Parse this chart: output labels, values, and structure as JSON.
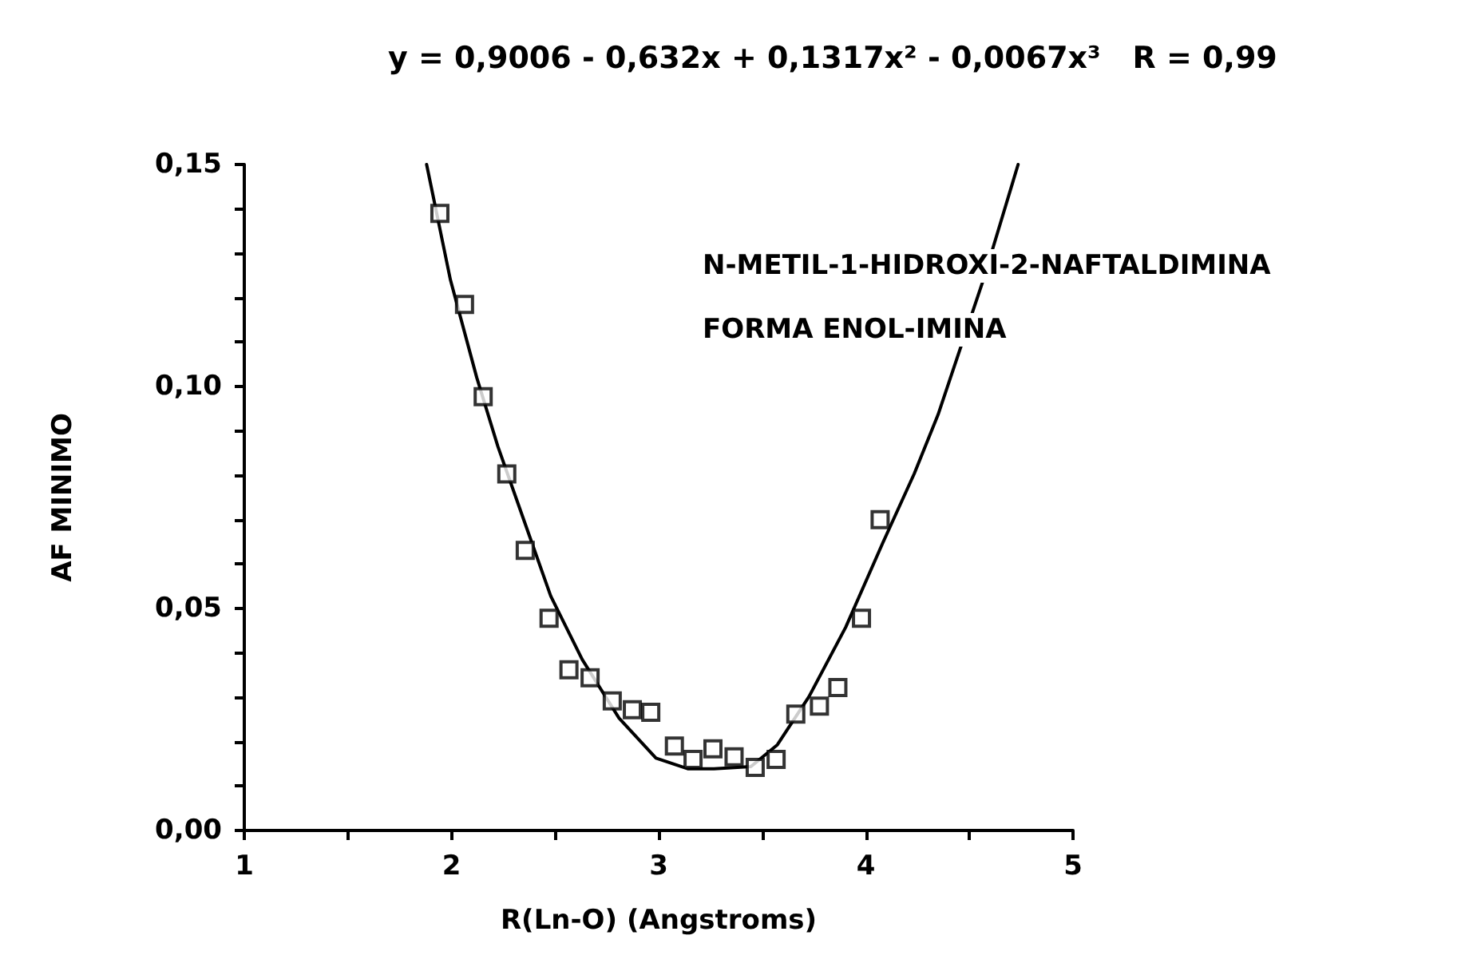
{
  "chart_data": {
    "type": "scatter",
    "title": "y = 0,9006 - 0,632x + 0,1317x² - 0,0067x³   R = 0,99",
    "xlabel": "R(Ln-O) (Angstroms)",
    "ylabel": "AF MINIMO",
    "annotations": [
      "N-METIL-1-HIDROXI-2-NAFTALDIMINA",
      "FORMA ENOL-IMINA"
    ],
    "xlim": [
      1,
      5
    ],
    "xticks": [
      1,
      {
        "value": 1.5,
        "label": null
      },
      2,
      {
        "value": 2.5,
        "label": null
      },
      3,
      {
        "value": 3.5,
        "label": null
      },
      4,
      {
        "value": 4.5,
        "label": null
      },
      5
    ],
    "ylim": [
      0,
      0.15
    ],
    "yticks": [
      {
        "value": 0,
        "label": "0,00"
      },
      {
        "value": 0.01,
        "label": null
      },
      {
        "value": 0.02,
        "label": null
      },
      {
        "value": 0.03,
        "label": null
      },
      {
        "value": 0.04,
        "label": null
      },
      {
        "value": 0.05,
        "label": "0,05"
      },
      {
        "value": 0.06,
        "label": null
      },
      {
        "value": 0.07,
        "label": null
      },
      {
        "value": 0.08,
        "label": null
      },
      {
        "value": 0.09,
        "label": null
      },
      {
        "value": 0.1,
        "label": "0,10"
      },
      {
        "value": 0.11,
        "label": null
      },
      {
        "value": 0.12,
        "label": null
      },
      {
        "value": 0.13,
        "label": null
      },
      {
        "value": 0.14,
        "label": null
      },
      {
        "value": 0.15,
        "label": "0,15"
      }
    ],
    "grid": false,
    "series": [
      {
        "marker": "square",
        "color": "#000000",
        "x": [
          1.944,
          2.063,
          2.153,
          2.267,
          2.356,
          2.471,
          2.567,
          2.669,
          2.776,
          2.873,
          2.962,
          3.076,
          3.166,
          3.262,
          3.364,
          3.466,
          3.567,
          3.662,
          3.776,
          3.865,
          3.979,
          4.069
        ],
        "values": [
          0.139,
          0.1185,
          0.0977,
          0.0803,
          0.0631,
          0.0478,
          0.0362,
          0.0344,
          0.0292,
          0.0272,
          0.0266,
          0.019,
          0.016,
          0.0184,
          0.0166,
          0.0142,
          0.016,
          0.0262,
          0.028,
          0.0322,
          0.0478,
          0.07
        ]
      },
      {
        "type": "line",
        "marker": "none",
        "color": "#000000",
        "line_style": "solid",
        "x": [
          1.88,
          1.995,
          2.122,
          2.224,
          2.351,
          2.479,
          2.631,
          2.809,
          2.987,
          3.14,
          3.267,
          3.445,
          3.573,
          3.725,
          3.903,
          4.082,
          4.234,
          4.349,
          4.565,
          4.735
        ],
        "values": [
          0.15,
          0.124,
          0.102,
          0.0865,
          0.0697,
          0.0528,
          0.0385,
          0.0253,
          0.0163,
          0.0139,
          0.0139,
          0.0144,
          0.0193,
          0.0301,
          0.0458,
          0.0648,
          0.0804,
          0.0937,
          0.1237,
          0.15
        ]
      }
    ]
  }
}
